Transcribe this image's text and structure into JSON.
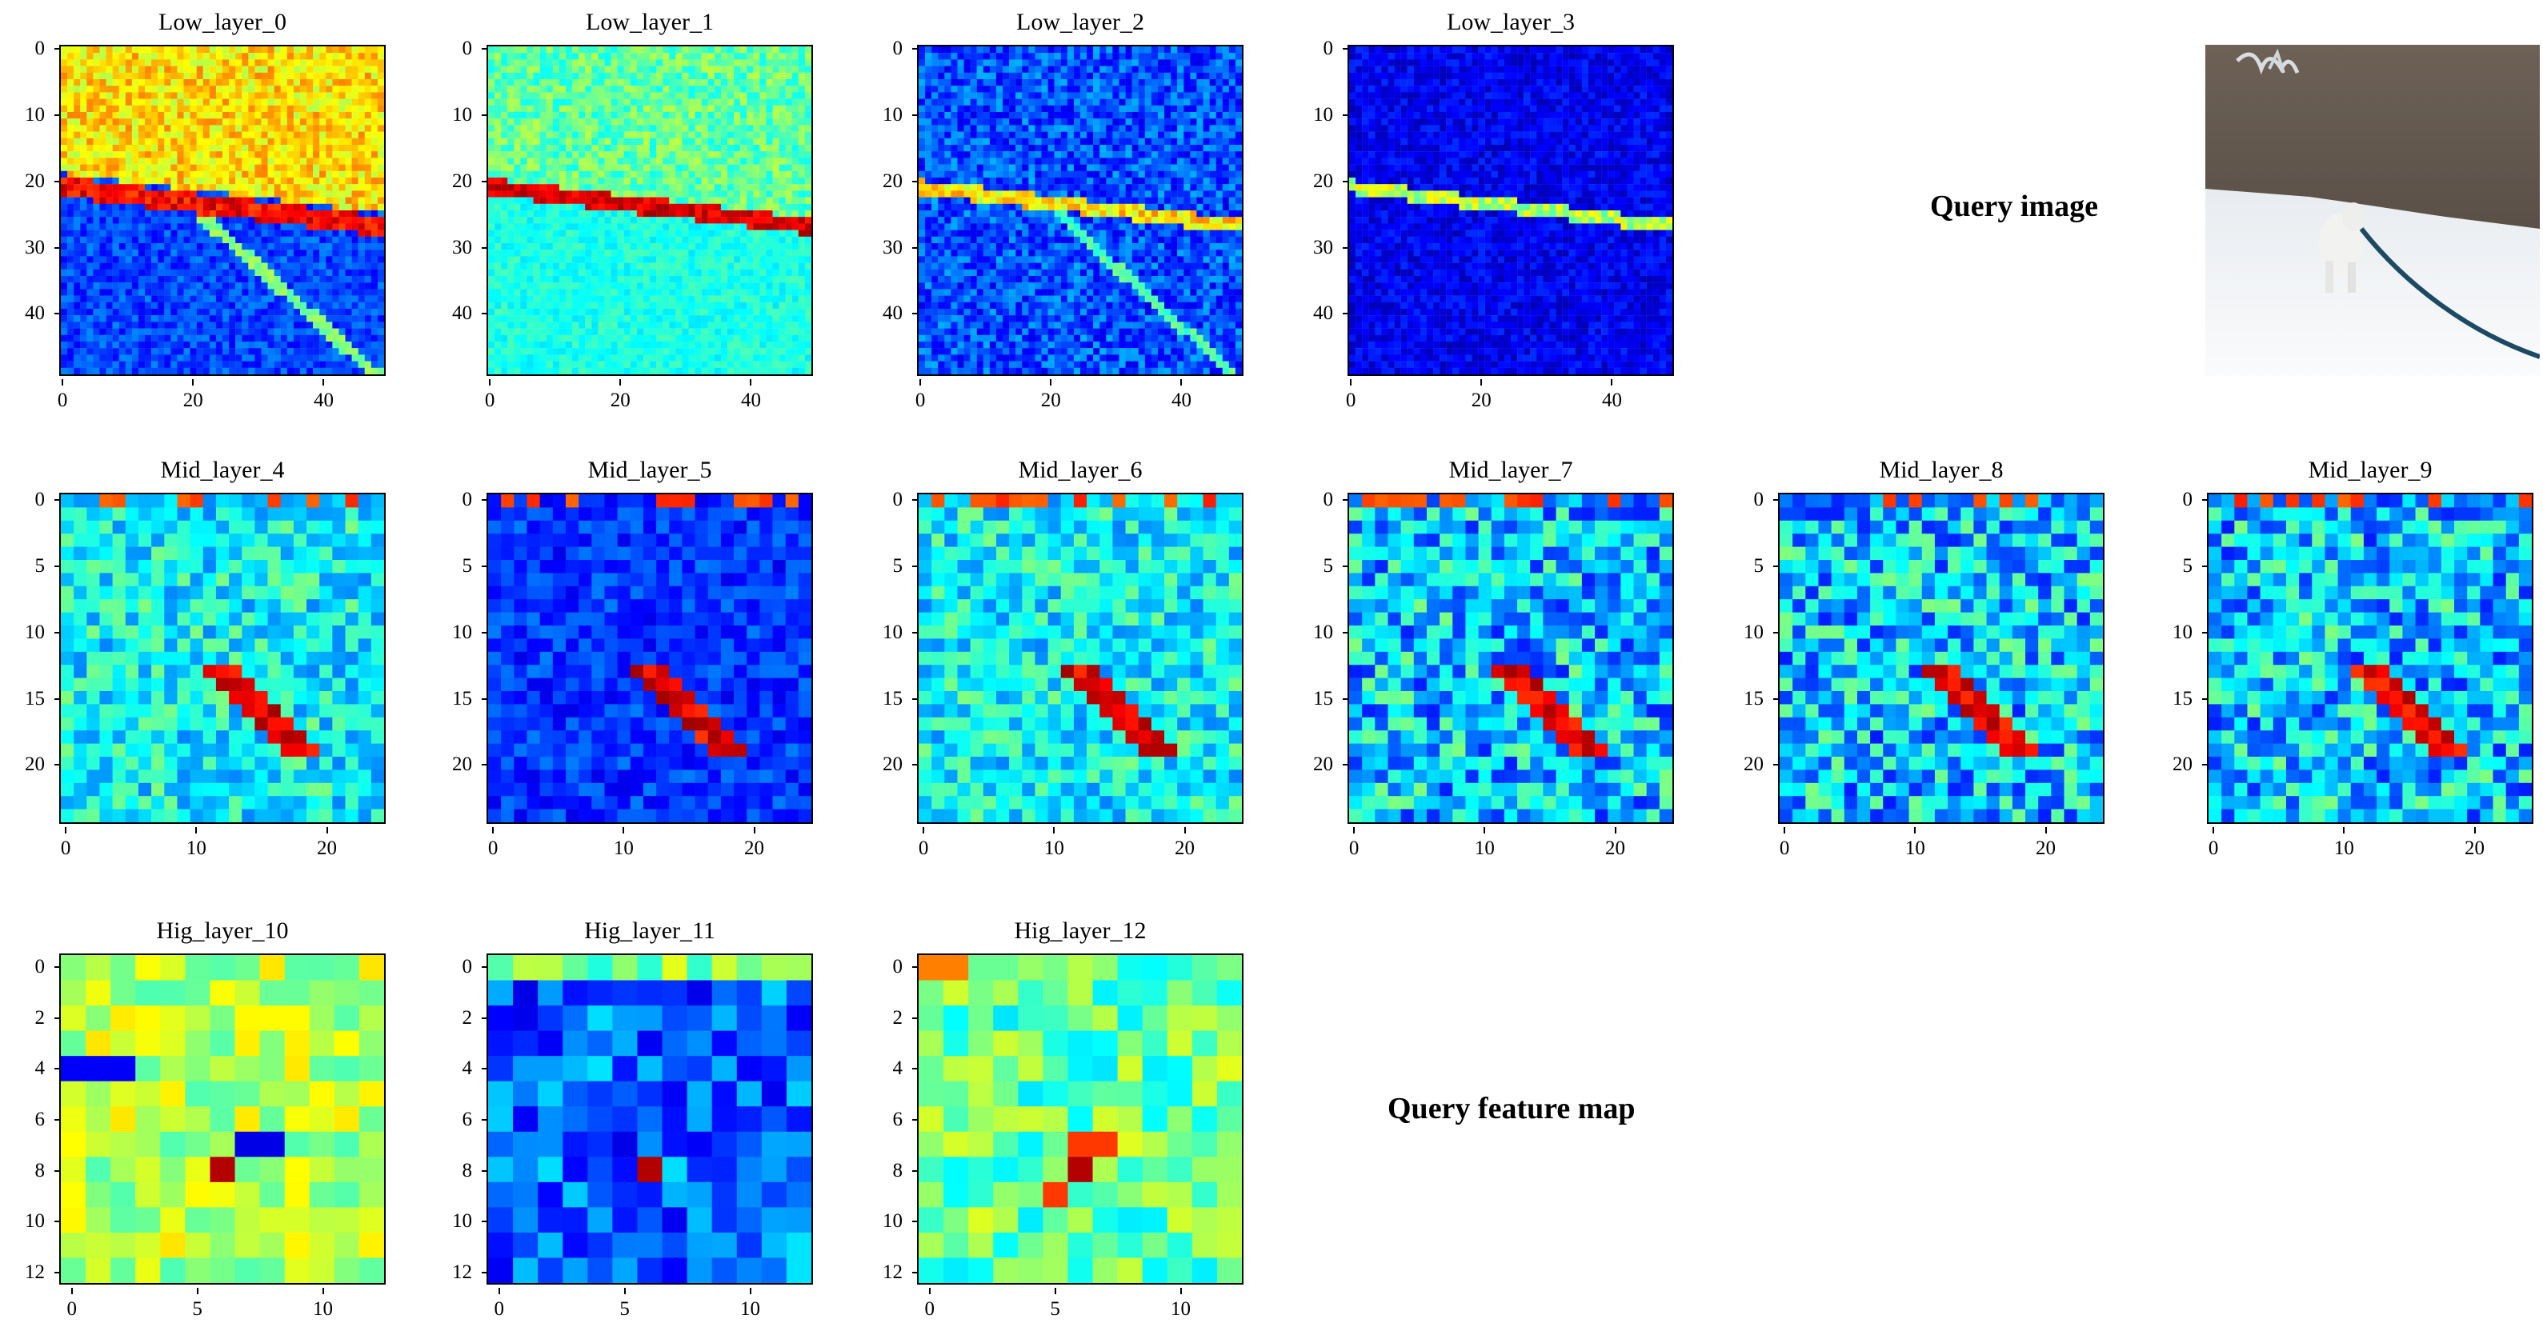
{
  "captions": {
    "query_image": "Query image",
    "query_feature_map": "Query feature map"
  },
  "colormap": "jet",
  "chart_data": [
    {
      "type": "heatmap",
      "title": "Low_layer_0",
      "grid_size": 50,
      "yticks": [
        "0",
        "10",
        "20",
        "30",
        "40"
      ],
      "xticks": [
        "0",
        "20",
        "40"
      ],
      "pattern": "high_top_low_bottom",
      "seed": 11
    },
    {
      "type": "heatmap",
      "title": "Low_layer_1",
      "grid_size": 50,
      "yticks": [
        "0",
        "10",
        "20",
        "30",
        "40"
      ],
      "xticks": [
        "0",
        "20",
        "40"
      ],
      "pattern": "mid_with_hot_line",
      "seed": 23
    },
    {
      "type": "heatmap",
      "title": "Low_layer_2",
      "grid_size": 50,
      "yticks": [
        "0",
        "10",
        "20",
        "30",
        "40"
      ],
      "xticks": [
        "0",
        "20",
        "40"
      ],
      "pattern": "low_with_line",
      "seed": 37
    },
    {
      "type": "heatmap",
      "title": "Low_layer_3",
      "grid_size": 50,
      "yticks": [
        "0",
        "10",
        "20",
        "30",
        "40"
      ],
      "xticks": [
        "0",
        "20",
        "40"
      ],
      "pattern": "dark_with_line",
      "seed": 41
    },
    {
      "type": "heatmap",
      "title": "Mid_layer_4",
      "grid_size": 25,
      "yticks": [
        "0",
        "5",
        "10",
        "15",
        "20"
      ],
      "xticks": [
        "0",
        "10",
        "20"
      ],
      "pattern": "mid_diag",
      "seed": 53
    },
    {
      "type": "heatmap",
      "title": "Mid_layer_5",
      "grid_size": 25,
      "yticks": [
        "0",
        "5",
        "10",
        "15",
        "20"
      ],
      "xticks": [
        "0",
        "10",
        "20"
      ],
      "pattern": "dark_diag",
      "seed": 61
    },
    {
      "type": "heatmap",
      "title": "Mid_layer_6",
      "grid_size": 25,
      "yticks": [
        "0",
        "5",
        "10",
        "15",
        "20"
      ],
      "xticks": [
        "0",
        "10",
        "20"
      ],
      "pattern": "mid_diag",
      "seed": 71
    },
    {
      "type": "heatmap",
      "title": "Mid_layer_7",
      "grid_size": 25,
      "yticks": [
        "0",
        "5",
        "10",
        "15",
        "20"
      ],
      "xticks": [
        "0",
        "10",
        "20"
      ],
      "pattern": "mixed_diag",
      "seed": 83
    },
    {
      "type": "heatmap",
      "title": "Mid_layer_8",
      "grid_size": 25,
      "yticks": [
        "0",
        "5",
        "10",
        "15",
        "20"
      ],
      "xticks": [
        "0",
        "10",
        "20"
      ],
      "pattern": "mixed_diag",
      "seed": 97
    },
    {
      "type": "heatmap",
      "title": "Mid_layer_9",
      "grid_size": 25,
      "yticks": [
        "0",
        "5",
        "10",
        "15",
        "20"
      ],
      "xticks": [
        "0",
        "10",
        "20"
      ],
      "pattern": "mixed_diag",
      "seed": 101
    },
    {
      "type": "heatmap",
      "title": "Hig_layer_10",
      "grid_size": 13,
      "yticks": [
        "0",
        "2",
        "4",
        "6",
        "8",
        "10",
        "12"
      ],
      "xticks": [
        "0",
        "5",
        "10"
      ],
      "pattern": "high_mid",
      "seed": 113
    },
    {
      "type": "heatmap",
      "title": "Hig_layer_11",
      "grid_size": 13,
      "yticks": [
        "0",
        "2",
        "4",
        "6",
        "8",
        "10",
        "12"
      ],
      "xticks": [
        "0",
        "5",
        "10"
      ],
      "pattern": "dark_hot",
      "seed": 127
    },
    {
      "type": "heatmap",
      "title": "Hig_layer_12",
      "grid_size": 13,
      "yticks": [
        "0",
        "2",
        "4",
        "6",
        "8",
        "10",
        "12"
      ],
      "xticks": [
        "0",
        "5",
        "10"
      ],
      "pattern": "high_mid2",
      "seed": 131
    }
  ]
}
